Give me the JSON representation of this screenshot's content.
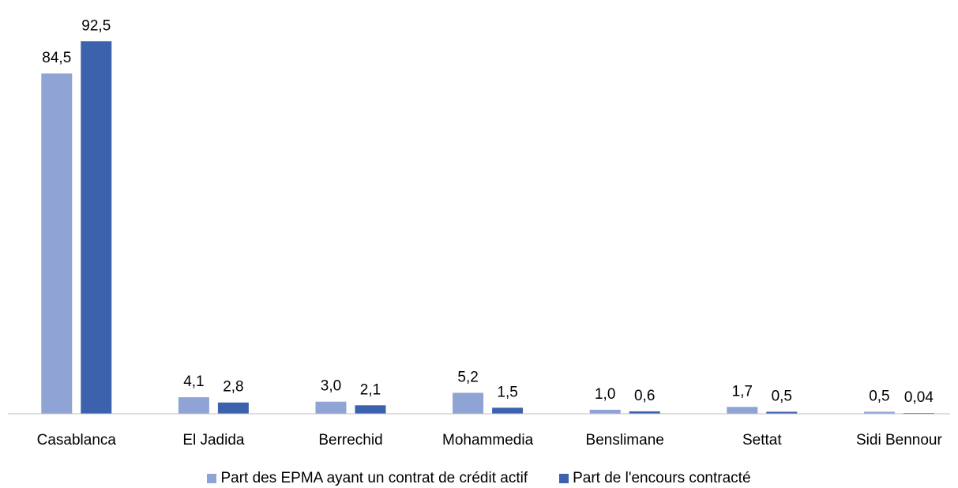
{
  "chart_data": {
    "type": "bar",
    "title": "",
    "xlabel": "",
    "ylabel": "",
    "ylim": [
      0,
      100
    ],
    "grid": false,
    "legend_position": "bottom",
    "categories": [
      "Casablanca",
      "El Jadida",
      "Berrechid",
      "Mohammedia",
      "Benslimane",
      "Settat",
      "Sidi Bennour"
    ],
    "series": [
      {
        "name": "Part des EPMA ayant un contrat de crédit actif",
        "color": "#8FA4D5",
        "values": [
          84.5,
          4.1,
          3.0,
          5.2,
          1.0,
          1.7,
          0.5
        ],
        "labels": [
          "84,5",
          "4,1",
          "3,0",
          "5,2",
          "1,0",
          "1,7",
          "0,5"
        ]
      },
      {
        "name": "Part de l'encours contracté",
        "color": "#3D62AD",
        "values": [
          92.5,
          2.8,
          2.1,
          1.5,
          0.6,
          0.5,
          0.04
        ],
        "labels": [
          "92,5",
          "2,8",
          "2,1",
          "1,5",
          "0,6",
          "0,5",
          "0,04"
        ]
      }
    ]
  },
  "axis_color": "#BFBFBF"
}
